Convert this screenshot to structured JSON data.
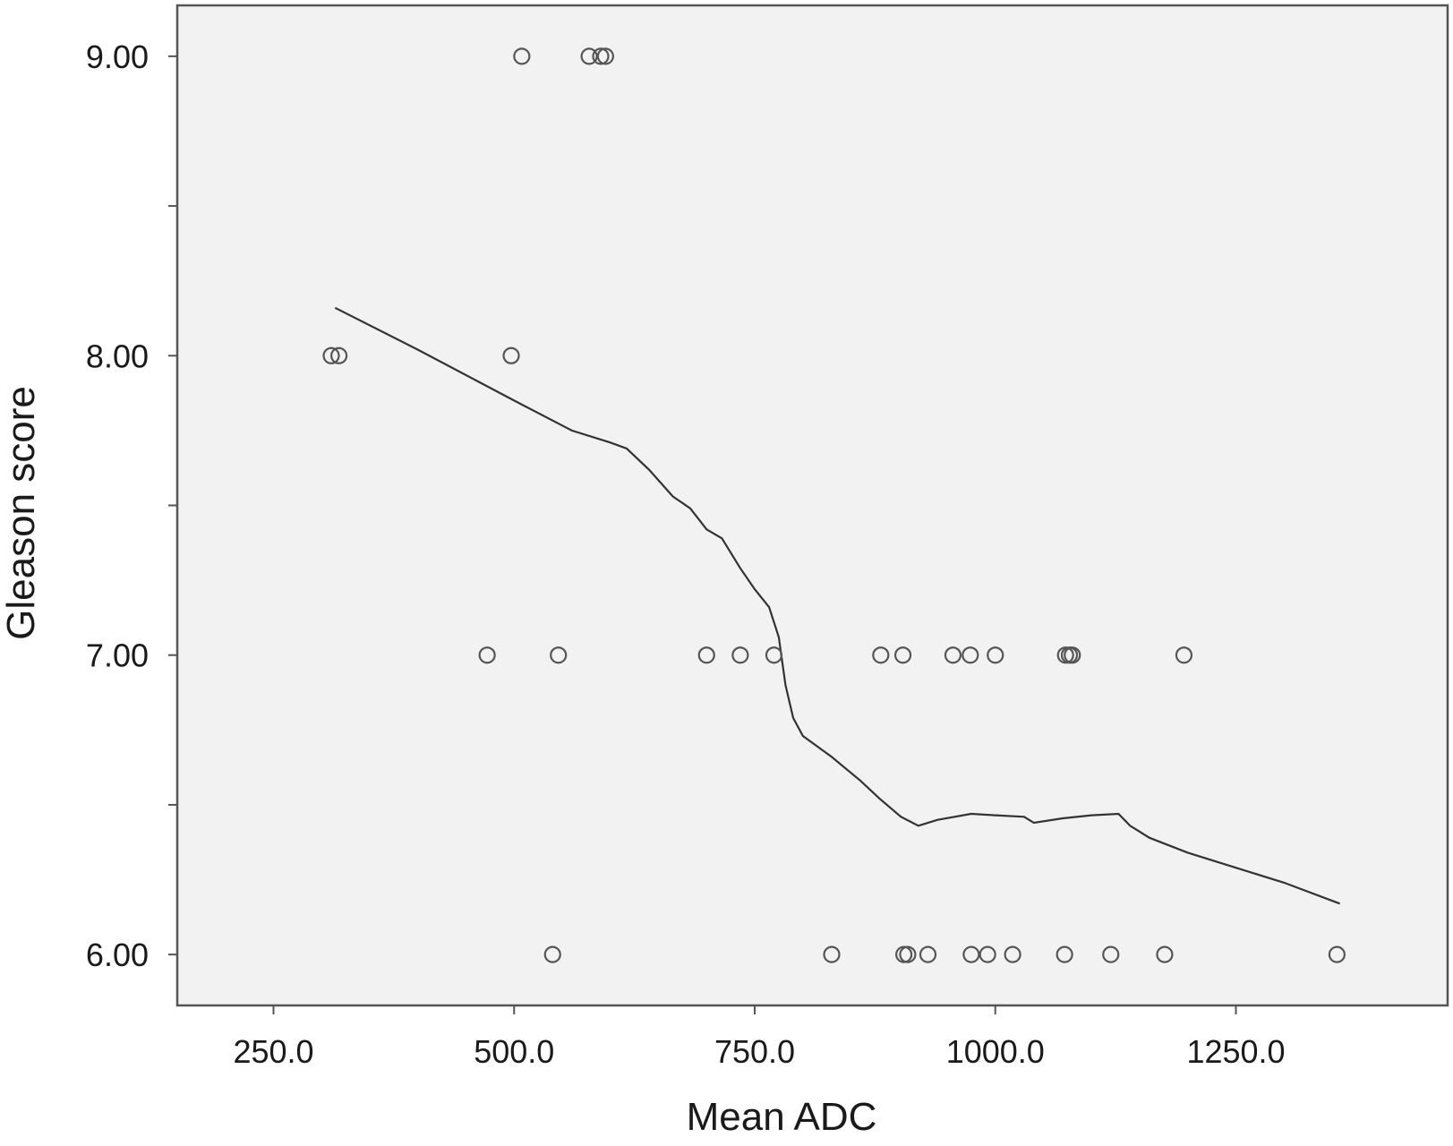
{
  "chart_data": {
    "type": "scatter",
    "title": "",
    "xlabel": "Mean ADC",
    "ylabel": "Gleason score",
    "xlim": [
      150,
      1470
    ],
    "ylim": [
      5.83,
      9.17
    ],
    "x_ticks": [
      250,
      500,
      750,
      1000,
      1250
    ],
    "x_tick_labels": [
      "250.0",
      "500.0",
      "750.0",
      "1000.0",
      "1250.0"
    ],
    "y_ticks": [
      6,
      7,
      8,
      9
    ],
    "y_tick_labels": [
      "6.00",
      "7.00",
      "8.00",
      "9.00"
    ],
    "grid": false,
    "legend": "none",
    "colors": {
      "plot_background": "#f2f2f2",
      "frame": "#555555",
      "marker_stroke": "#555555",
      "line": "#333333"
    },
    "series": [
      {
        "kind": "points",
        "points": [
          {
            "x": 508,
            "y": 9
          },
          {
            "x": 578,
            "y": 9
          },
          {
            "x": 590,
            "y": 9
          },
          {
            "x": 595,
            "y": 9
          },
          {
            "x": 310,
            "y": 8
          },
          {
            "x": 318,
            "y": 8
          },
          {
            "x": 497,
            "y": 8
          },
          {
            "x": 472,
            "y": 7
          },
          {
            "x": 546,
            "y": 7
          },
          {
            "x": 700,
            "y": 7
          },
          {
            "x": 735,
            "y": 7
          },
          {
            "x": 770,
            "y": 7
          },
          {
            "x": 881,
            "y": 7
          },
          {
            "x": 904,
            "y": 7
          },
          {
            "x": 956,
            "y": 7
          },
          {
            "x": 974,
            "y": 7
          },
          {
            "x": 1000,
            "y": 7
          },
          {
            "x": 1073,
            "y": 7
          },
          {
            "x": 1077,
            "y": 7
          },
          {
            "x": 1080,
            "y": 7
          },
          {
            "x": 1196,
            "y": 7
          },
          {
            "x": 540,
            "y": 6
          },
          {
            "x": 830,
            "y": 6
          },
          {
            "x": 905,
            "y": 6
          },
          {
            "x": 909,
            "y": 6
          },
          {
            "x": 930,
            "y": 6
          },
          {
            "x": 975,
            "y": 6
          },
          {
            "x": 992,
            "y": 6
          },
          {
            "x": 1018,
            "y": 6
          },
          {
            "x": 1072,
            "y": 6
          },
          {
            "x": 1120,
            "y": 6
          },
          {
            "x": 1176,
            "y": 6
          },
          {
            "x": 1355,
            "y": 6
          }
        ]
      },
      {
        "kind": "fit-line",
        "points": [
          {
            "x": 314,
            "y": 8.16
          },
          {
            "x": 400,
            "y": 8.02
          },
          {
            "x": 500,
            "y": 7.85
          },
          {
            "x": 560,
            "y": 7.75
          },
          {
            "x": 600,
            "y": 7.71
          },
          {
            "x": 617,
            "y": 7.69
          },
          {
            "x": 640,
            "y": 7.62
          },
          {
            "x": 665,
            "y": 7.53
          },
          {
            "x": 683,
            "y": 7.49
          },
          {
            "x": 700,
            "y": 7.42
          },
          {
            "x": 716,
            "y": 7.39
          },
          {
            "x": 735,
            "y": 7.29
          },
          {
            "x": 750,
            "y": 7.22
          },
          {
            "x": 765,
            "y": 7.16
          },
          {
            "x": 775,
            "y": 7.06
          },
          {
            "x": 782,
            "y": 6.9
          },
          {
            "x": 790,
            "y": 6.79
          },
          {
            "x": 800,
            "y": 6.73
          },
          {
            "x": 830,
            "y": 6.66
          },
          {
            "x": 860,
            "y": 6.58
          },
          {
            "x": 880,
            "y": 6.52
          },
          {
            "x": 902,
            "y": 6.46
          },
          {
            "x": 920,
            "y": 6.43
          },
          {
            "x": 940,
            "y": 6.45
          },
          {
            "x": 975,
            "y": 6.47
          },
          {
            "x": 1000,
            "y": 6.465
          },
          {
            "x": 1030,
            "y": 6.46
          },
          {
            "x": 1040,
            "y": 6.44
          },
          {
            "x": 1070,
            "y": 6.455
          },
          {
            "x": 1100,
            "y": 6.465
          },
          {
            "x": 1128,
            "y": 6.47
          },
          {
            "x": 1140,
            "y": 6.43
          },
          {
            "x": 1160,
            "y": 6.39
          },
          {
            "x": 1200,
            "y": 6.34
          },
          {
            "x": 1250,
            "y": 6.29
          },
          {
            "x": 1300,
            "y": 6.24
          },
          {
            "x": 1358,
            "y": 6.17
          }
        ]
      }
    ]
  }
}
